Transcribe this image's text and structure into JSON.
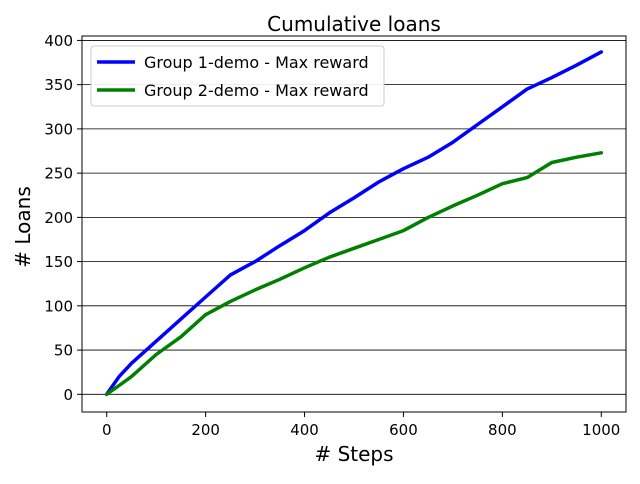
{
  "chart_data": {
    "type": "line",
    "title": "Cumulative loans",
    "xlabel": "# Steps",
    "ylabel": "# Loans",
    "xlim": [
      -50,
      1050
    ],
    "ylim": [
      -20,
      405
    ],
    "xticks": [
      0,
      200,
      400,
      600,
      800,
      1000
    ],
    "yticks": [
      0,
      50,
      100,
      150,
      200,
      250,
      300,
      350,
      400
    ],
    "grid": "horizontal",
    "legend_position": "top-left",
    "series": [
      {
        "name": "Group 1-demo - Max reward",
        "color": "#0000ff",
        "x": [
          0,
          25,
          50,
          100,
          150,
          200,
          250,
          300,
          350,
          400,
          450,
          500,
          550,
          600,
          650,
          700,
          750,
          800,
          850,
          900,
          950,
          1000
        ],
        "y": [
          0,
          20,
          35,
          60,
          85,
          110,
          135,
          150,
          168,
          185,
          205,
          222,
          240,
          255,
          268,
          285,
          305,
          325,
          345,
          358,
          372,
          387
        ]
      },
      {
        "name": "Group 2-demo - Max reward",
        "color": "#008000",
        "x": [
          0,
          25,
          50,
          100,
          150,
          200,
          250,
          300,
          350,
          400,
          450,
          500,
          550,
          600,
          650,
          700,
          750,
          800,
          850,
          900,
          950,
          1000
        ],
        "y": [
          0,
          10,
          20,
          45,
          65,
          90,
          105,
          118,
          130,
          143,
          155,
          165,
          175,
          185,
          200,
          213,
          225,
          238,
          245,
          262,
          268,
          273
        ]
      }
    ]
  }
}
